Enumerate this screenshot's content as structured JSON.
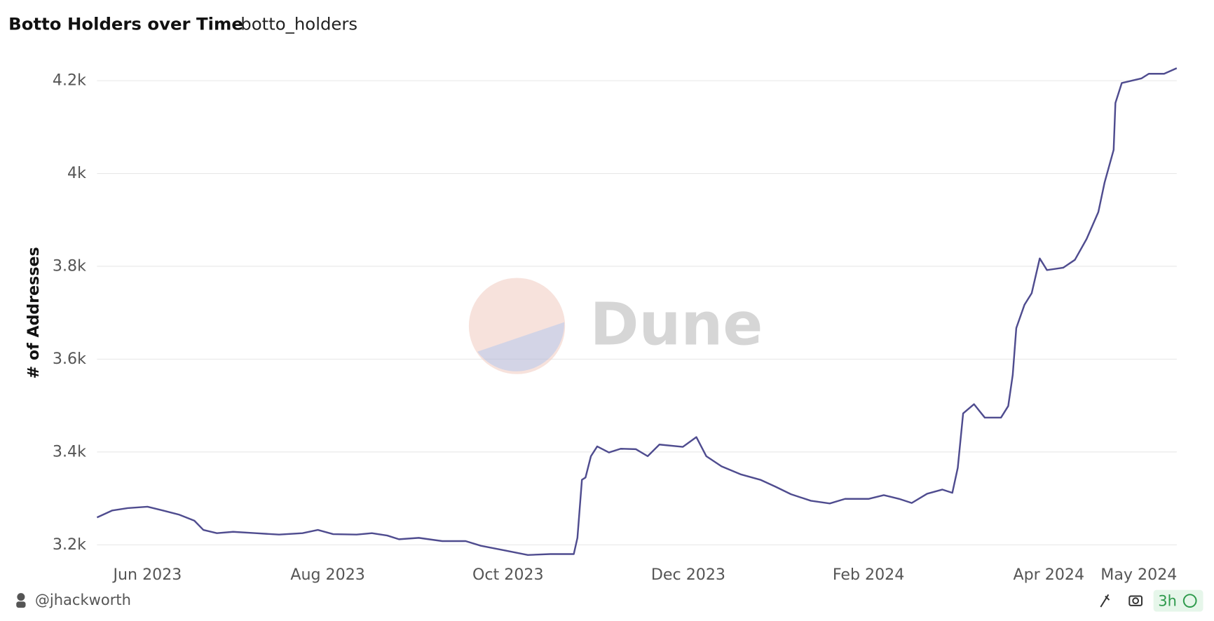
{
  "chart_data": {
    "type": "line",
    "title": "Botto Holders over Time",
    "subtitle": "botto_holders",
    "y_label": "# of Addresses",
    "watermark": "Dune",
    "color": "#4f4c8f",
    "grid": true,
    "x": [
      5.44,
      5.61,
      5.78,
      6.0,
      6.17,
      6.35,
      6.52,
      6.62,
      6.77,
      6.95,
      7.2,
      7.46,
      7.72,
      7.89,
      8.06,
      8.32,
      8.49,
      8.66,
      8.79,
      9.01,
      9.27,
      9.53,
      9.7,
      9.96,
      10.22,
      10.47,
      10.73,
      10.77,
      10.82,
      10.86,
      10.92,
      10.99,
      11.12,
      11.25,
      11.42,
      11.55,
      11.68,
      11.94,
      12.09,
      12.2,
      12.37,
      12.58,
      12.8,
      12.97,
      13.14,
      13.36,
      13.57,
      13.74,
      14.0,
      14.17,
      14.34,
      14.48,
      14.65,
      14.82,
      14.93,
      14.99,
      15.05,
      15.17,
      15.29,
      15.47,
      15.55,
      15.6,
      15.64,
      15.73,
      15.81,
      15.9,
      15.98,
      16.16,
      16.29,
      16.42,
      16.55,
      16.62,
      16.72,
      16.74,
      16.81,
      17.03,
      17.11,
      17.28,
      17.42
    ],
    "values": [
      3259,
      3274,
      3279,
      3282,
      3274,
      3265,
      3252,
      3232,
      3225,
      3228,
      3225,
      3222,
      3225,
      3232,
      3223,
      3222,
      3225,
      3220,
      3212,
      3215,
      3208,
      3208,
      3198,
      3188,
      3178,
      3180,
      3180,
      3215,
      3340,
      3345,
      3391,
      3412,
      3399,
      3407,
      3406,
      3391,
      3416,
      3411,
      3432,
      3391,
      3369,
      3352,
      3340,
      3325,
      3309,
      3295,
      3289,
      3299,
      3299,
      3307,
      3299,
      3290,
      3310,
      3319,
      3312,
      3366,
      3483,
      3503,
      3474,
      3474,
      3499,
      3566,
      3667,
      3717,
      3742,
      3817,
      3792,
      3797,
      3814,
      3859,
      3917,
      3981,
      4051,
      4152,
      4195,
      4205,
      4215,
      4215,
      4227
    ],
    "xlim": [
      5.44,
      17.42
    ],
    "xticks": [
      {
        "value": 6,
        "label": "Jun 2023"
      },
      {
        "value": 8,
        "label": "Aug 2023"
      },
      {
        "value": 10,
        "label": "Oct 2023"
      },
      {
        "value": 12,
        "label": "Dec 2023"
      },
      {
        "value": 14,
        "label": "Feb 2024"
      },
      {
        "value": 16,
        "label": "Apr 2024"
      },
      {
        "value": 17,
        "label": "May 2024"
      }
    ],
    "ylim": [
      3173,
      4235
    ],
    "yticks": [
      {
        "value": 3200,
        "label": "3.2k"
      },
      {
        "value": 3400,
        "label": "3.4k"
      },
      {
        "value": 3600,
        "label": "3.6k"
      },
      {
        "value": 3800,
        "label": "3.8k"
      },
      {
        "value": 4000,
        "label": "4k"
      },
      {
        "value": 4200,
        "label": "4.2k"
      }
    ]
  },
  "footer": {
    "author": "@jhackworth",
    "age": "3h"
  }
}
